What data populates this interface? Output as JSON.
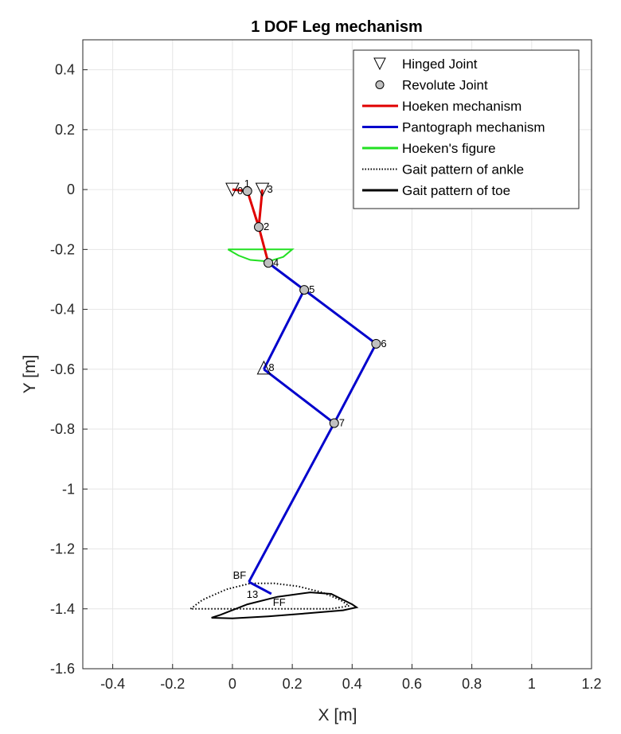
{
  "chart_data": {
    "type": "line",
    "title": "1 DOF Leg mechanism",
    "xlabel": "X [m]",
    "ylabel": "Y [m]",
    "xlim": [
      -0.5,
      1.2
    ],
    "ylim": [
      -1.6,
      0.5
    ],
    "grid": true,
    "xticks": [
      -0.4,
      -0.2,
      0,
      0.2,
      0.4,
      0.6,
      0.8,
      1,
      1.2
    ],
    "xtick_labels": [
      "-0.4",
      "-0.2",
      "0",
      "0.2",
      "0.4",
      "0.6",
      "0.8",
      "1",
      "1.2"
    ],
    "yticks": [
      0.4,
      0.2,
      0,
      -0.2,
      -0.4,
      -0.6,
      -0.8,
      -1,
      -1.2,
      -1.4,
      -1.6
    ],
    "ytick_labels": [
      "0.4",
      "0.2",
      "0",
      "-0.2",
      "-0.4",
      "-0.6",
      "-0.8",
      "-1",
      "-1.2",
      "-1.4",
      "-1.6"
    ],
    "legend": {
      "location": "top-right",
      "entries": [
        {
          "label": "Hinged Joint",
          "style": "triangle-down"
        },
        {
          "label": "Revolute Joint",
          "style": "circle"
        },
        {
          "label": "Hoeken mechanism",
          "style": "line",
          "color": "#e00000"
        },
        {
          "label": "Pantograph mechanism",
          "style": "line",
          "color": "#0000cc"
        },
        {
          "label": "Hoeken's figure",
          "style": "line",
          "color": "#22e022"
        },
        {
          "label": "Gait pattern of ankle",
          "style": "dotted",
          "color": "#000000"
        },
        {
          "label": "Gait pattern of toe",
          "style": "line",
          "color": "#000000"
        }
      ]
    },
    "colors": {
      "hoeken": "#e00000",
      "pantograph": "#0000cc",
      "hoeken_figure": "#22e022",
      "gait": "#000000",
      "joint_fill": "#c0c0c0"
    },
    "joints": [
      {
        "label": "1",
        "x": 0.05,
        "y": -0.005,
        "type": "revolute"
      },
      {
        "label": "2",
        "x": 0.088,
        "y": -0.125,
        "type": "revolute"
      },
      {
        "label": "3",
        "x": 0.1,
        "y": 0.0,
        "type": "hinged"
      },
      {
        "label": "4",
        "x": 0.12,
        "y": -0.245,
        "type": "revolute"
      },
      {
        "label": "5",
        "x": 0.24,
        "y": -0.335,
        "type": "revolute"
      },
      {
        "label": "6",
        "x": 0.48,
        "y": -0.515,
        "type": "revolute"
      },
      {
        "label": "7",
        "x": 0.34,
        "y": -0.78,
        "type": "revolute"
      },
      {
        "label": "8",
        "x": 0.105,
        "y": -0.595,
        "type": "hinged-up"
      },
      {
        "label": "0",
        "x": 0.0,
        "y": 0.0,
        "type": "hinged"
      },
      {
        "label": "BF",
        "x": 0.055,
        "y": -1.31,
        "type": "point"
      },
      {
        "label": "13",
        "x": 0.09,
        "y": -1.34,
        "type": "point"
      },
      {
        "label": "FF",
        "x": 0.13,
        "y": -1.35,
        "type": "point"
      }
    ],
    "hoeken_links": [
      [
        [
          0.0,
          0.0
        ],
        [
          0.05,
          -0.005
        ]
      ],
      [
        [
          0.05,
          -0.005
        ],
        [
          0.088,
          -0.125
        ]
      ],
      [
        [
          0.1,
          0.0
        ],
        [
          0.088,
          -0.125
        ]
      ],
      [
        [
          0.088,
          -0.125
        ],
        [
          0.12,
          -0.245
        ]
      ]
    ],
    "pantograph_links": [
      [
        [
          0.12,
          -0.245
        ],
        [
          0.24,
          -0.335
        ]
      ],
      [
        [
          0.24,
          -0.335
        ],
        [
          0.48,
          -0.515
        ]
      ],
      [
        [
          0.48,
          -0.515
        ],
        [
          0.34,
          -0.78
        ]
      ],
      [
        [
          0.24,
          -0.335
        ],
        [
          0.105,
          -0.6
        ]
      ],
      [
        [
          0.105,
          -0.6
        ],
        [
          0.34,
          -0.78
        ]
      ],
      [
        [
          0.34,
          -0.78
        ],
        [
          0.055,
          -1.31
        ]
      ],
      [
        [
          0.055,
          -1.31
        ],
        [
          0.13,
          -1.35
        ]
      ]
    ],
    "hoeken_figure": [
      [
        -0.015,
        -0.2
      ],
      [
        0.2,
        -0.2
      ],
      [
        0.17,
        -0.225
      ],
      [
        0.12,
        -0.24
      ],
      [
        0.06,
        -0.235
      ],
      [
        0.02,
        -0.22
      ],
      [
        -0.015,
        -0.2
      ]
    ],
    "ankle_gait": [
      [
        -0.14,
        -1.4
      ],
      [
        -0.1,
        -1.37
      ],
      [
        -0.02,
        -1.335
      ],
      [
        0.06,
        -1.315
      ],
      [
        0.14,
        -1.315
      ],
      [
        0.22,
        -1.325
      ],
      [
        0.3,
        -1.345
      ],
      [
        0.36,
        -1.37
      ],
      [
        0.39,
        -1.39
      ],
      [
        0.33,
        -1.4
      ],
      [
        0.2,
        -1.4
      ],
      [
        0.0,
        -1.4
      ],
      [
        -0.14,
        -1.4
      ]
    ],
    "toe_gait": [
      [
        -0.07,
        -1.43
      ],
      [
        -0.04,
        -1.42
      ],
      [
        0.05,
        -1.385
      ],
      [
        0.15,
        -1.36
      ],
      [
        0.26,
        -1.345
      ],
      [
        0.33,
        -1.35
      ],
      [
        0.4,
        -1.385
      ],
      [
        0.415,
        -1.395
      ],
      [
        0.37,
        -1.405
      ],
      [
        0.25,
        -1.415
      ],
      [
        0.12,
        -1.425
      ],
      [
        0.0,
        -1.432
      ],
      [
        -0.07,
        -1.43
      ]
    ]
  }
}
